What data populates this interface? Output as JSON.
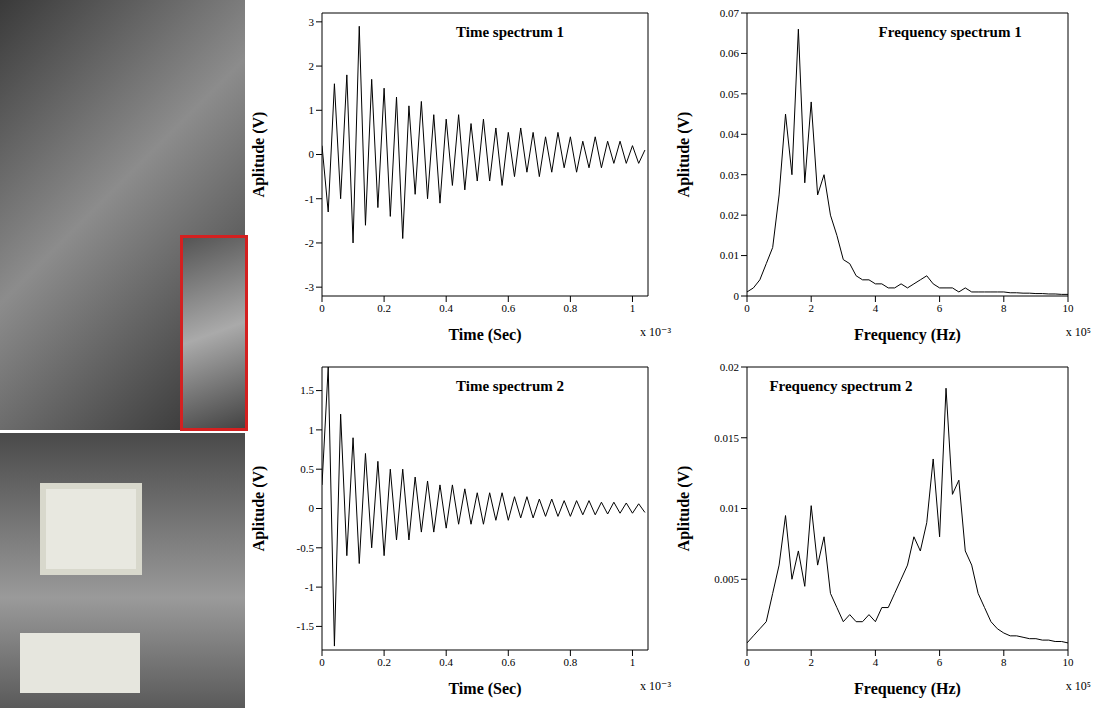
{
  "chart_data": [
    {
      "type": "line",
      "title": "Time spectrum 1",
      "x_label": "Time (Sec)",
      "y_label": "Aplitude (V)",
      "x_offset_label": "x 10⁻³",
      "color": "#000000",
      "grid": false,
      "xlim": [
        0,
        1.05
      ],
      "xticks": [
        0,
        0.2,
        0.4,
        0.6,
        0.8,
        1
      ],
      "ylim": [
        -3.2,
        3.2
      ],
      "yticks": [
        -3,
        -2,
        -1,
        0,
        1,
        2,
        3
      ],
      "x": [
        0,
        0.02,
        0.04,
        0.06,
        0.08,
        0.1,
        0.12,
        0.14,
        0.16,
        0.18,
        0.2,
        0.22,
        0.24,
        0.26,
        0.28,
        0.3,
        0.32,
        0.34,
        0.36,
        0.38,
        0.4,
        0.42,
        0.44,
        0.46,
        0.48,
        0.5,
        0.52,
        0.54,
        0.56,
        0.58,
        0.6,
        0.62,
        0.64,
        0.66,
        0.68,
        0.7,
        0.72,
        0.74,
        0.76,
        0.78,
        0.8,
        0.82,
        0.84,
        0.86,
        0.88,
        0.9,
        0.92,
        0.94,
        0.96,
        0.98,
        1,
        1.02,
        1.04
      ],
      "values": [
        0.2,
        -1.3,
        1.6,
        -1.0,
        1.8,
        -2.0,
        2.9,
        -1.6,
        1.7,
        -1.2,
        1.5,
        -1.4,
        1.3,
        -1.9,
        1.1,
        -0.9,
        1.2,
        -1.0,
        0.9,
        -1.1,
        0.8,
        -0.7,
        0.9,
        -0.8,
        0.7,
        -0.6,
        0.8,
        -0.6,
        0.6,
        -0.7,
        0.5,
        -0.5,
        0.6,
        -0.4,
        0.5,
        -0.5,
        0.4,
        -0.4,
        0.5,
        -0.3,
        0.4,
        -0.4,
        0.3,
        -0.3,
        0.4,
        -0.3,
        0.3,
        -0.2,
        0.3,
        -0.2,
        0.2,
        -0.2,
        0.1
      ]
    },
    {
      "type": "line",
      "title": "Frequency spectrum 1",
      "x_label": "Frequency (Hz)",
      "y_label": "Aplitude (V)",
      "x_offset_label": "x 10⁵",
      "color": "#000000",
      "grid": false,
      "xlim": [
        0,
        10
      ],
      "xticks": [
        0,
        2,
        4,
        6,
        8,
        10
      ],
      "ylim": [
        0,
        0.07
      ],
      "yticks": [
        0,
        0.01,
        0.02,
        0.03,
        0.04,
        0.05,
        0.06,
        0.07
      ],
      "x": [
        0,
        0.2,
        0.4,
        0.6,
        0.8,
        1,
        1.2,
        1.4,
        1.6,
        1.8,
        2,
        2.2,
        2.4,
        2.6,
        2.8,
        3,
        3.2,
        3.4,
        3.6,
        3.8,
        4,
        4.2,
        4.4,
        4.6,
        4.8,
        5,
        5.2,
        5.4,
        5.6,
        5.8,
        6,
        6.2,
        6.4,
        6.6,
        6.8,
        7,
        7.2,
        7.4,
        7.6,
        7.8,
        8,
        8.2,
        8.4,
        8.6,
        8.8,
        9,
        9.2,
        9.4,
        9.6,
        9.8,
        10
      ],
      "values": [
        0.001,
        0.002,
        0.004,
        0.008,
        0.012,
        0.025,
        0.045,
        0.03,
        0.066,
        0.028,
        0.048,
        0.025,
        0.03,
        0.02,
        0.015,
        0.009,
        0.008,
        0.005,
        0.004,
        0.004,
        0.003,
        0.003,
        0.002,
        0.002,
        0.003,
        0.002,
        0.003,
        0.004,
        0.005,
        0.003,
        0.002,
        0.002,
        0.002,
        0.001,
        0.002,
        0.001,
        0.001,
        0.001,
        0.001,
        0.001,
        0.001,
        0.0008,
        0.0008,
        0.0007,
        0.0007,
        0.0006,
        0.0006,
        0.0005,
        0.0005,
        0.0004,
        0.0004
      ]
    },
    {
      "type": "line",
      "title": "Time spectrum 2",
      "x_label": "Time (Sec)",
      "y_label": "Aplitude (V)",
      "x_offset_label": "x 10⁻³",
      "color": "#000000",
      "grid": false,
      "xlim": [
        0,
        1.05
      ],
      "xticks": [
        0,
        0.2,
        0.4,
        0.6,
        0.8,
        1
      ],
      "ylim": [
        -1.8,
        1.8
      ],
      "yticks": [
        -1.5,
        -1,
        -0.5,
        0,
        0.5,
        1,
        1.5
      ],
      "x": [
        0,
        0.02,
        0.04,
        0.06,
        0.08,
        0.1,
        0.12,
        0.14,
        0.16,
        0.18,
        0.2,
        0.22,
        0.24,
        0.26,
        0.28,
        0.3,
        0.32,
        0.34,
        0.36,
        0.38,
        0.4,
        0.42,
        0.44,
        0.46,
        0.48,
        0.5,
        0.52,
        0.54,
        0.56,
        0.58,
        0.6,
        0.62,
        0.64,
        0.66,
        0.68,
        0.7,
        0.72,
        0.74,
        0.76,
        0.78,
        0.8,
        0.82,
        0.84,
        0.86,
        0.88,
        0.9,
        0.92,
        0.94,
        0.96,
        0.98,
        1,
        1.02,
        1.04
      ],
      "values": [
        0.3,
        1.8,
        -1.75,
        1.2,
        -0.6,
        0.9,
        -0.7,
        0.7,
        -0.5,
        0.6,
        -0.6,
        0.5,
        -0.4,
        0.5,
        -0.4,
        0.4,
        -0.3,
        0.35,
        -0.3,
        0.3,
        -0.25,
        0.3,
        -0.2,
        0.25,
        -0.2,
        0.2,
        -0.2,
        0.2,
        -0.15,
        0.2,
        -0.15,
        0.15,
        -0.12,
        0.15,
        -0.12,
        0.12,
        -0.1,
        0.12,
        -0.1,
        0.1,
        -0.1,
        0.1,
        -0.08,
        0.1,
        -0.08,
        0.08,
        -0.07,
        0.08,
        -0.06,
        0.07,
        -0.06,
        0.06,
        -0.05
      ]
    },
    {
      "type": "line",
      "title": "Frequency spectrum 2",
      "x_label": "Frequency (Hz)",
      "y_label": "Aplitude (V)",
      "x_offset_label": "x 10⁵",
      "color": "#000000",
      "grid": false,
      "xlim": [
        0,
        10
      ],
      "xticks": [
        0,
        2,
        4,
        6,
        8,
        10
      ],
      "ylim": [
        0,
        0.02
      ],
      "yticks": [
        0.005,
        0.01,
        0.015,
        0.02
      ],
      "x": [
        0,
        0.2,
        0.4,
        0.6,
        0.8,
        1,
        1.2,
        1.4,
        1.6,
        1.8,
        2,
        2.2,
        2.4,
        2.6,
        2.8,
        3,
        3.2,
        3.4,
        3.6,
        3.8,
        4,
        4.2,
        4.4,
        4.6,
        4.8,
        5,
        5.2,
        5.4,
        5.6,
        5.8,
        6,
        6.2,
        6.4,
        6.6,
        6.8,
        7,
        7.2,
        7.4,
        7.6,
        7.8,
        8,
        8.2,
        8.4,
        8.6,
        8.8,
        9,
        9.2,
        9.4,
        9.6,
        9.8,
        10
      ],
      "values": [
        0.0005,
        0.001,
        0.0015,
        0.002,
        0.004,
        0.006,
        0.0095,
        0.005,
        0.007,
        0.0045,
        0.0102,
        0.006,
        0.008,
        0.004,
        0.003,
        0.002,
        0.0025,
        0.002,
        0.002,
        0.0025,
        0.002,
        0.003,
        0.003,
        0.004,
        0.005,
        0.006,
        0.008,
        0.007,
        0.009,
        0.0135,
        0.008,
        0.0185,
        0.011,
        0.012,
        0.007,
        0.006,
        0.004,
        0.003,
        0.002,
        0.0015,
        0.0012,
        0.001,
        0.001,
        0.0009,
        0.0008,
        0.0008,
        0.0007,
        0.0007,
        0.0006,
        0.0006,
        0.0005
      ]
    }
  ]
}
